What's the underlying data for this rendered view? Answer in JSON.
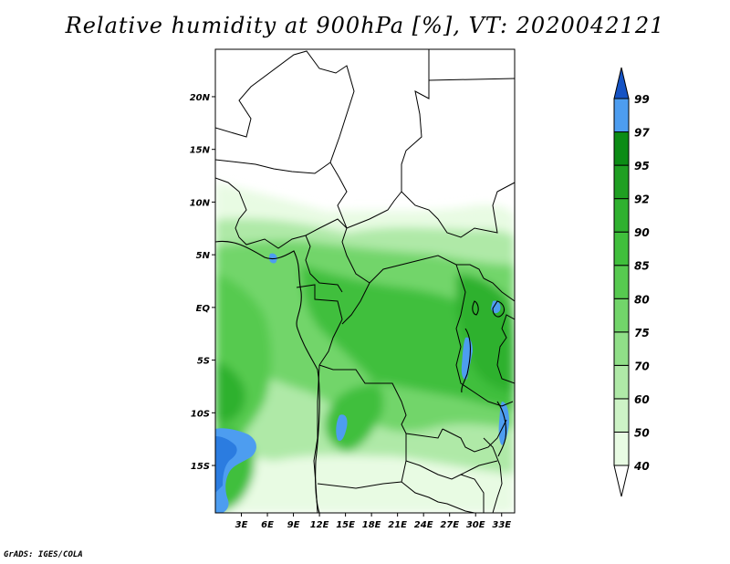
{
  "title": "Relative humidity at 900hPa [%], VT: 2020042121",
  "credit": "GrADS: IGES/COLA",
  "map": {
    "lat_labels": [
      "20N",
      "15N",
      "10N",
      "5N",
      "EQ",
      "5S",
      "10S",
      "15S"
    ],
    "lat_values": [
      20,
      15,
      10,
      5,
      0,
      -5,
      -10,
      -15
    ],
    "lon_labels": [
      "3E",
      "6E",
      "9E",
      "12E",
      "15E",
      "18E",
      "21E",
      "24E",
      "27E",
      "30E",
      "33E"
    ],
    "lon_values": [
      3,
      6,
      9,
      12,
      15,
      18,
      21,
      24,
      27,
      30,
      33
    ],
    "lat_range": [
      -19.5,
      24.5
    ],
    "lon_range": [
      0,
      34.5
    ]
  },
  "colorbar": {
    "levels": [
      40,
      50,
      60,
      70,
      75,
      80,
      85,
      90,
      92,
      95,
      97,
      99
    ],
    "labels": [
      "40",
      "50",
      "60",
      "70",
      "75",
      "80",
      "85",
      "90",
      "92",
      "95",
      "97",
      "99"
    ],
    "colors": [
      "#e8fbe3",
      "#cdf3c6",
      "#afe9a7",
      "#90df88",
      "#72d56a",
      "#57ca50",
      "#40bf3c",
      "#2fb12f",
      "#1f9f22",
      "#0c8c15",
      "#4d9df0",
      "#2b7ce0",
      "#1553c4"
    ]
  }
}
